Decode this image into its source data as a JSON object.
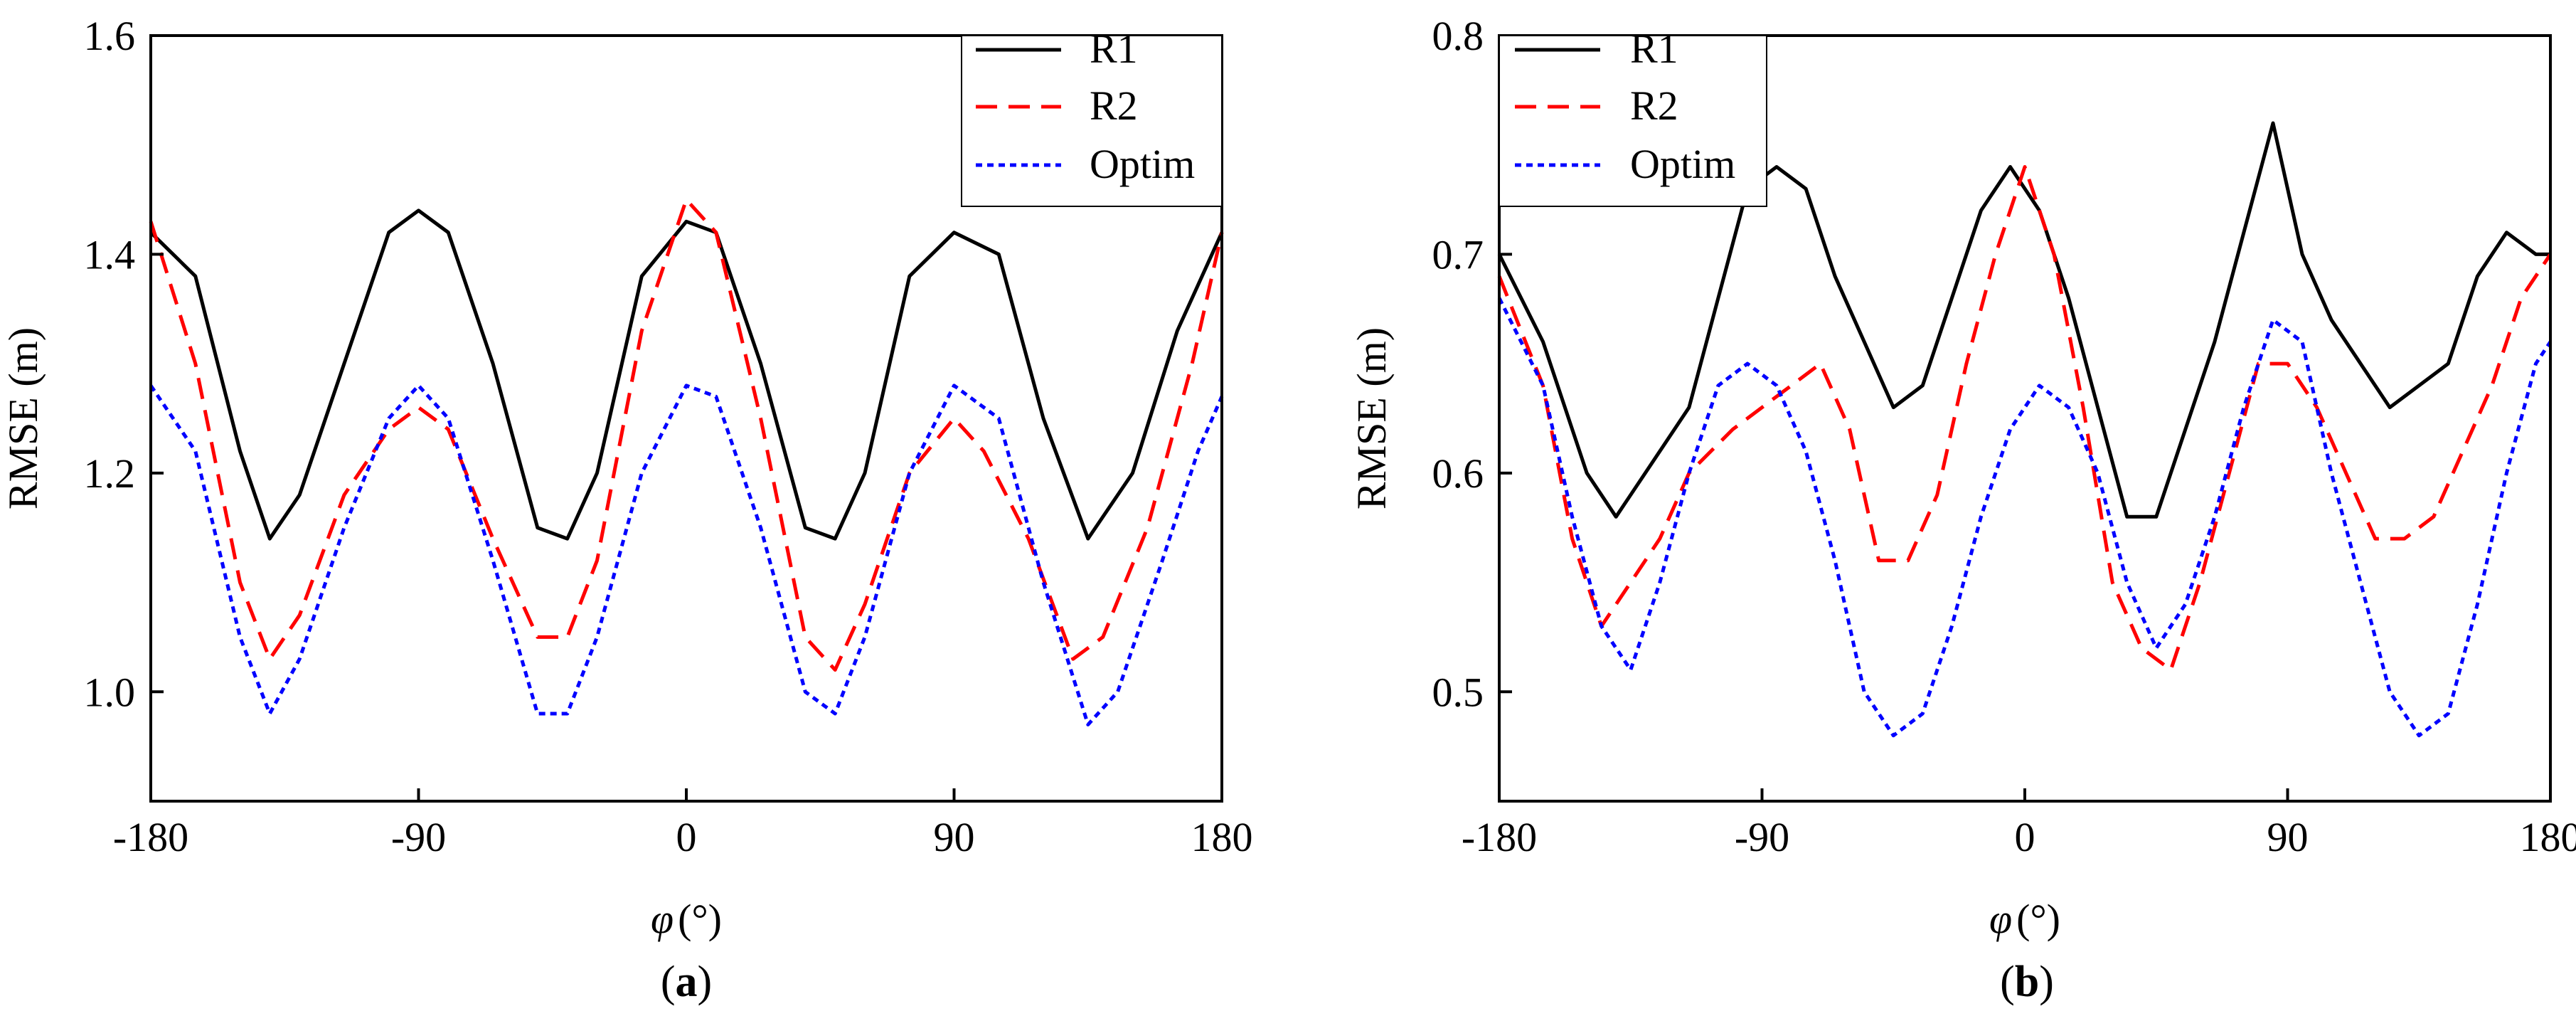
{
  "colors": {
    "r1": "#000000",
    "r2": "#ff0000",
    "optim": "#0000ff",
    "frame": "#000000"
  },
  "chart_data": [
    {
      "type": "line",
      "panel": "(a)",
      "caption_letter": "a",
      "xlabel_symbol": "φ",
      "xlabel_unit": "(°)",
      "ylabel": "RMSE (m)",
      "xlim": [
        -180,
        180
      ],
      "ylim": [
        0.9,
        1.6
      ],
      "xticks": [
        -180,
        -90,
        0,
        90,
        180
      ],
      "xtick_labels": [
        "-180",
        "-90",
        "0",
        "90",
        "180"
      ],
      "yticks": [
        1.0,
        1.2,
        1.4,
        1.6
      ],
      "ytick_labels": [
        "1.0",
        "1.2",
        "1.4",
        "1.6"
      ],
      "legend_position": "top-right",
      "series": [
        {
          "name": "R1",
          "key": "r1",
          "style": "solid",
          "points": [
            [
              -180,
              1.42
            ],
            [
              -165,
              1.38
            ],
            [
              -150,
              1.22
            ],
            [
              -140,
              1.14
            ],
            [
              -130,
              1.18
            ],
            [
              -115,
              1.3
            ],
            [
              -100,
              1.42
            ],
            [
              -90,
              1.44
            ],
            [
              -80,
              1.42
            ],
            [
              -65,
              1.3
            ],
            [
              -50,
              1.15
            ],
            [
              -40,
              1.14
            ],
            [
              -30,
              1.2
            ],
            [
              -15,
              1.38
            ],
            [
              0,
              1.43
            ],
            [
              10,
              1.42
            ],
            [
              25,
              1.3
            ],
            [
              40,
              1.15
            ],
            [
              50,
              1.14
            ],
            [
              60,
              1.2
            ],
            [
              75,
              1.38
            ],
            [
              90,
              1.42
            ],
            [
              105,
              1.4
            ],
            [
              120,
              1.25
            ],
            [
              135,
              1.14
            ],
            [
              150,
              1.2
            ],
            [
              165,
              1.33
            ],
            [
              180,
              1.42
            ]
          ]
        },
        {
          "name": "R2",
          "key": "r2",
          "style": "dashed",
          "points": [
            [
              -180,
              1.43
            ],
            [
              -165,
              1.3
            ],
            [
              -150,
              1.1
            ],
            [
              -140,
              1.03
            ],
            [
              -130,
              1.07
            ],
            [
              -115,
              1.18
            ],
            [
              -100,
              1.24
            ],
            [
              -90,
              1.26
            ],
            [
              -80,
              1.24
            ],
            [
              -65,
              1.14
            ],
            [
              -50,
              1.05
            ],
            [
              -40,
              1.05
            ],
            [
              -30,
              1.12
            ],
            [
              -15,
              1.33
            ],
            [
              0,
              1.45
            ],
            [
              10,
              1.42
            ],
            [
              25,
              1.25
            ],
            [
              40,
              1.05
            ],
            [
              50,
              1.02
            ],
            [
              60,
              1.08
            ],
            [
              75,
              1.2
            ],
            [
              90,
              1.25
            ],
            [
              100,
              1.22
            ],
            [
              115,
              1.14
            ],
            [
              130,
              1.03
            ],
            [
              140,
              1.05
            ],
            [
              155,
              1.15
            ],
            [
              170,
              1.3
            ],
            [
              180,
              1.42
            ]
          ]
        },
        {
          "name": "Optim",
          "key": "optim",
          "style": "dotted",
          "points": [
            [
              -180,
              1.28
            ],
            [
              -165,
              1.22
            ],
            [
              -150,
              1.05
            ],
            [
              -140,
              0.98
            ],
            [
              -130,
              1.03
            ],
            [
              -115,
              1.15
            ],
            [
              -100,
              1.25
            ],
            [
              -90,
              1.28
            ],
            [
              -80,
              1.25
            ],
            [
              -65,
              1.12
            ],
            [
              -50,
              0.98
            ],
            [
              -40,
              0.98
            ],
            [
              -30,
              1.05
            ],
            [
              -15,
              1.2
            ],
            [
              0,
              1.28
            ],
            [
              10,
              1.27
            ],
            [
              25,
              1.15
            ],
            [
              40,
              1.0
            ],
            [
              50,
              0.98
            ],
            [
              60,
              1.05
            ],
            [
              75,
              1.2
            ],
            [
              90,
              1.28
            ],
            [
              105,
              1.25
            ],
            [
              120,
              1.1
            ],
            [
              135,
              0.97
            ],
            [
              145,
              1.0
            ],
            [
              160,
              1.12
            ],
            [
              172,
              1.22
            ],
            [
              180,
              1.27
            ]
          ]
        }
      ]
    },
    {
      "type": "line",
      "panel": "(b)",
      "caption_letter": "b",
      "xlabel_symbol": "φ",
      "xlabel_unit": "(°)",
      "ylabel": "RMSE (m)",
      "xlim": [
        -180,
        180
      ],
      "ylim": [
        0.45,
        0.8
      ],
      "xticks": [
        -180,
        -90,
        0,
        90,
        180
      ],
      "xtick_labels": [
        "-180",
        "-90",
        "0",
        "90",
        "180"
      ],
      "yticks": [
        0.5,
        0.6,
        0.7,
        0.8
      ],
      "ytick_labels": [
        "0.5",
        "0.6",
        "0.7",
        "0.8"
      ],
      "legend_position": "top-left",
      "series": [
        {
          "name": "R1",
          "key": "r1",
          "style": "solid",
          "points": [
            [
              -180,
              0.7
            ],
            [
              -165,
              0.66
            ],
            [
              -150,
              0.6
            ],
            [
              -140,
              0.58
            ],
            [
              -130,
              0.6
            ],
            [
              -115,
              0.63
            ],
            [
              -105,
              0.68
            ],
            [
              -95,
              0.73
            ],
            [
              -85,
              0.74
            ],
            [
              -75,
              0.73
            ],
            [
              -65,
              0.69
            ],
            [
              -55,
              0.66
            ],
            [
              -45,
              0.63
            ],
            [
              -35,
              0.64
            ],
            [
              -25,
              0.68
            ],
            [
              -15,
              0.72
            ],
            [
              -5,
              0.74
            ],
            [
              5,
              0.72
            ],
            [
              15,
              0.68
            ],
            [
              25,
              0.63
            ],
            [
              35,
              0.58
            ],
            [
              45,
              0.58
            ],
            [
              55,
              0.62
            ],
            [
              65,
              0.66
            ],
            [
              75,
              0.71
            ],
            [
              85,
              0.76
            ],
            [
              95,
              0.7
            ],
            [
              105,
              0.67
            ],
            [
              115,
              0.65
            ],
            [
              125,
              0.63
            ],
            [
              135,
              0.64
            ],
            [
              145,
              0.65
            ],
            [
              155,
              0.69
            ],
            [
              165,
              0.71
            ],
            [
              175,
              0.7
            ],
            [
              180,
              0.7
            ]
          ]
        },
        {
          "name": "R2",
          "key": "r2",
          "style": "dashed",
          "points": [
            [
              -180,
              0.69
            ],
            [
              -165,
              0.64
            ],
            [
              -155,
              0.57
            ],
            [
              -145,
              0.53
            ],
            [
              -135,
              0.55
            ],
            [
              -125,
              0.57
            ],
            [
              -115,
              0.6
            ],
            [
              -100,
              0.62
            ],
            [
              -90,
              0.63
            ],
            [
              -80,
              0.64
            ],
            [
              -70,
              0.65
            ],
            [
              -60,
              0.62
            ],
            [
              -50,
              0.56
            ],
            [
              -40,
              0.56
            ],
            [
              -30,
              0.59
            ],
            [
              -20,
              0.65
            ],
            [
              -10,
              0.7
            ],
            [
              0,
              0.74
            ],
            [
              10,
              0.7
            ],
            [
              20,
              0.63
            ],
            [
              30,
              0.55
            ],
            [
              40,
              0.52
            ],
            [
              50,
              0.51
            ],
            [
              60,
              0.55
            ],
            [
              70,
              0.6
            ],
            [
              80,
              0.65
            ],
            [
              90,
              0.65
            ],
            [
              100,
              0.63
            ],
            [
              110,
              0.6
            ],
            [
              120,
              0.57
            ],
            [
              130,
              0.57
            ],
            [
              140,
              0.58
            ],
            [
              150,
              0.61
            ],
            [
              160,
              0.64
            ],
            [
              170,
              0.68
            ],
            [
              180,
              0.7
            ]
          ]
        },
        {
          "name": "Optim",
          "key": "optim",
          "style": "dotted",
          "points": [
            [
              -180,
              0.68
            ],
            [
              -165,
              0.64
            ],
            [
              -155,
              0.58
            ],
            [
              -145,
              0.53
            ],
            [
              -135,
              0.51
            ],
            [
              -125,
              0.55
            ],
            [
              -115,
              0.6
            ],
            [
              -105,
              0.64
            ],
            [
              -95,
              0.65
            ],
            [
              -85,
              0.64
            ],
            [
              -75,
              0.61
            ],
            [
              -65,
              0.56
            ],
            [
              -55,
              0.5
            ],
            [
              -45,
              0.48
            ],
            [
              -35,
              0.49
            ],
            [
              -25,
              0.53
            ],
            [
              -15,
              0.58
            ],
            [
              -5,
              0.62
            ],
            [
              5,
              0.64
            ],
            [
              15,
              0.63
            ],
            [
              25,
              0.6
            ],
            [
              35,
              0.55
            ],
            [
              45,
              0.52
            ],
            [
              55,
              0.54
            ],
            [
              65,
              0.58
            ],
            [
              75,
              0.63
            ],
            [
              85,
              0.67
            ],
            [
              95,
              0.66
            ],
            [
              105,
              0.6
            ],
            [
              115,
              0.55
            ],
            [
              125,
              0.5
            ],
            [
              135,
              0.48
            ],
            [
              145,
              0.49
            ],
            [
              155,
              0.54
            ],
            [
              165,
              0.6
            ],
            [
              175,
              0.65
            ],
            [
              180,
              0.66
            ]
          ]
        }
      ]
    }
  ]
}
